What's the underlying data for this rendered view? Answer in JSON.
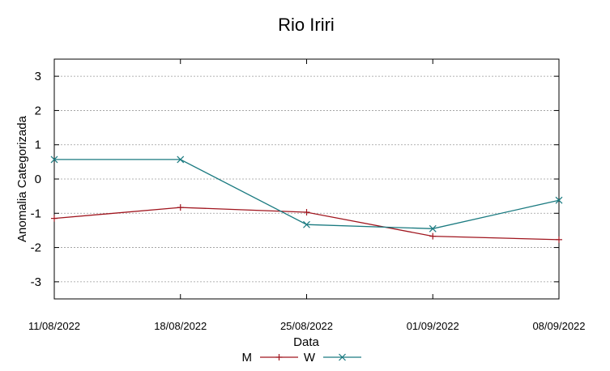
{
  "chart_data": {
    "type": "line",
    "title": "Rio Iriri",
    "xlabel": "Data",
    "ylabel": "Anomalia Categorizada",
    "categories": [
      "11/08/2022",
      "18/08/2022",
      "25/08/2022",
      "01/09/2022",
      "08/09/2022"
    ],
    "ylim": [
      -3.5,
      3.5
    ],
    "yticks": [
      3,
      2,
      1,
      0,
      -1,
      -2,
      -3
    ],
    "ytick_labels": [
      "3",
      "2",
      "1",
      "0",
      "-1",
      "-2",
      "-3"
    ],
    "grid": true,
    "legend_position": "bottom",
    "series": [
      {
        "name": "M",
        "values": [
          -1.15,
          -0.83,
          -0.97,
          -1.67,
          -1.77
        ],
        "color": "#a0151e",
        "marker": "plus"
      },
      {
        "name": "W",
        "values": [
          0.57,
          0.57,
          -1.33,
          -1.45,
          -0.62
        ],
        "color": "#1a7a80",
        "marker": "cross"
      }
    ]
  }
}
